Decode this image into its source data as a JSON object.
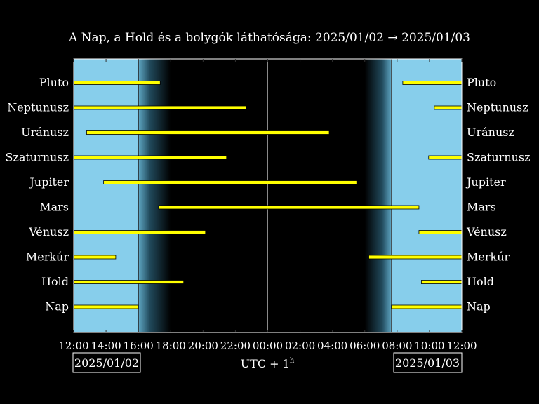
{
  "chart_data": {
    "type": "bar",
    "title": "A Nap, a Hold és a bolygók láthatósága: 2025/01/02 → 2025/01/03",
    "xlabel_main": "UTC + 1",
    "xlabel_sup": "h",
    "start_date_label": "2025/01/02",
    "end_date_label": "2025/01/03",
    "x_unit": "hours",
    "xlim": [
      12,
      36
    ],
    "x_ticks": [
      12,
      14,
      16,
      18,
      20,
      22,
      24,
      26,
      28,
      30,
      32,
      34,
      36
    ],
    "x_tick_labels": [
      "12:00",
      "14:00",
      "16:00",
      "18:00",
      "20:00",
      "22:00",
      "00:00",
      "02:00",
      "04:00",
      "06:00",
      "08:00",
      "10:00",
      "12:00"
    ],
    "sunset": 16.0,
    "twilight_end": 18.0,
    "twilight_start": 30.0,
    "sunrise": 31.65,
    "midnight": 24.0,
    "colors": {
      "day": "#87ceeb",
      "night": "#000000",
      "bar": "#ffff00",
      "bar_edge": "#000000",
      "text": "#ffffff",
      "axis": "#ffffff"
    },
    "categories": [
      "Pluto",
      "Neptunusz",
      "Uránusz",
      "Szaturnusz",
      "Jupiter",
      "Mars",
      "Vénusz",
      "Merkúr",
      "Hold",
      "Nap"
    ],
    "series": [
      {
        "category": "Pluto",
        "intervals": [
          [
            12.0,
            17.35
          ],
          [
            32.35,
            36.0
          ]
        ]
      },
      {
        "category": "Neptunusz",
        "intervals": [
          [
            12.0,
            22.65
          ],
          [
            34.3,
            36.0
          ]
        ]
      },
      {
        "category": "Uránusz",
        "intervals": [
          [
            12.8,
            27.8
          ]
        ]
      },
      {
        "category": "Szaturnusz",
        "intervals": [
          [
            12.0,
            21.45
          ],
          [
            33.95,
            36.0
          ]
        ]
      },
      {
        "category": "Jupiter",
        "intervals": [
          [
            13.85,
            29.5
          ]
        ]
      },
      {
        "category": "Mars",
        "intervals": [
          [
            17.25,
            33.35
          ]
        ]
      },
      {
        "category": "Vénusz",
        "intervals": [
          [
            12.0,
            20.15
          ],
          [
            33.35,
            36.0
          ]
        ]
      },
      {
        "category": "Merkúr",
        "intervals": [
          [
            12.0,
            14.6
          ],
          [
            30.25,
            36.0
          ]
        ]
      },
      {
        "category": "Hold",
        "intervals": [
          [
            12.0,
            18.8
          ],
          [
            33.5,
            36.0
          ]
        ]
      },
      {
        "category": "Nap",
        "intervals": [
          [
            12.0,
            16.0
          ],
          [
            31.65,
            36.0
          ]
        ]
      }
    ]
  }
}
